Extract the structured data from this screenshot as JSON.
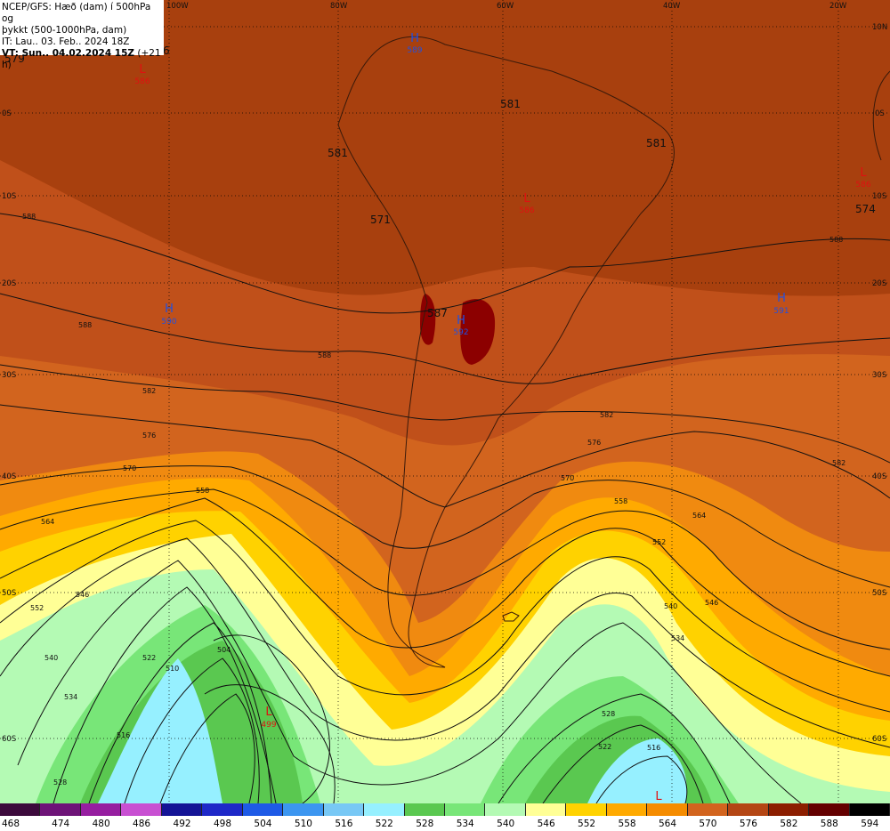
{
  "header": {
    "line1": "NCEP/GFS: Hæð (dam) í 500hPa og",
    "line2": "þykkt (500-1000hPa, dam)",
    "line3": "IT: Lau.. 03. Feb.. 2024 18Z",
    "line4_bold": "VT: Sun.. 04.02.2024 15Z",
    "line4_rest": "(+21 h)"
  },
  "axes": {
    "lon_labels": [
      "100W",
      "80W",
      "60W",
      "40W",
      "20W"
    ],
    "lat_labels": [
      "10N",
      "0S",
      "10S",
      "20S",
      "30S",
      "40S",
      "50S",
      "60S"
    ]
  },
  "pressure_centers": [
    {
      "type": "H",
      "value": "589",
      "color": "#2050e0"
    },
    {
      "type": "L",
      "value": "586",
      "color": "#e01010"
    },
    {
      "type": "L",
      "value": "586",
      "color": "#e01010"
    },
    {
      "type": "L",
      "value": "586",
      "color": "#e01010"
    },
    {
      "type": "H",
      "value": "590",
      "color": "#2050e0"
    },
    {
      "type": "H",
      "value": "592",
      "color": "#2050e0"
    },
    {
      "type": "H",
      "value": "591",
      "color": "#2050e0"
    },
    {
      "type": "L",
      "value": "499",
      "color": "#e01010"
    },
    {
      "type": "L",
      "value": "",
      "color": "#e01010"
    }
  ],
  "thickness_labels": [
    "579",
    "6",
    "581",
    "581",
    "581",
    "571",
    "587",
    "574"
  ],
  "contour_labels": [
    "588",
    "588",
    "588",
    "582",
    "576",
    "570",
    "564",
    "558",
    "552",
    "546",
    "540",
    "534",
    "528",
    "522",
    "516",
    "510",
    "504",
    "576",
    "582",
    "570",
    "564",
    "558",
    "552",
    "546",
    "540",
    "534",
    "528",
    "522",
    "516",
    "588",
    "582"
  ],
  "legend": {
    "values": [
      "468",
      "474",
      "480",
      "486",
      "492",
      "498",
      "504",
      "510",
      "516",
      "522",
      "528",
      "534",
      "540",
      "546",
      "552",
      "558",
      "564",
      "570",
      "576",
      "582",
      "588",
      "594"
    ],
    "colors": [
      "#3c0a3c",
      "#6e1478",
      "#961ea0",
      "#c850d2",
      "#141496",
      "#1e28c8",
      "#1e5ae6",
      "#3c96f0",
      "#78c8f5",
      "#96f0ff",
      "#5ac850",
      "#78e678",
      "#b4fab4",
      "#ffff96",
      "#ffd200",
      "#ffaa00",
      "#f58c00",
      "#d2641e",
      "#b44614",
      "#8c1e00",
      "#640000",
      "#000000"
    ]
  }
}
